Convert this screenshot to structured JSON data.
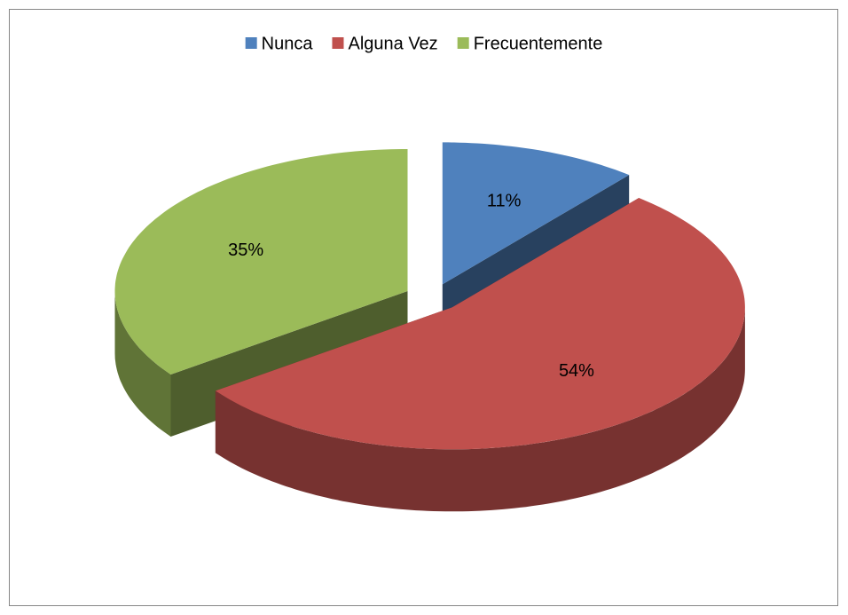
{
  "chart_data": {
    "type": "pie",
    "categories": [
      "Nunca",
      "Alguna Vez",
      "Frecuentemente"
    ],
    "values": [
      11,
      54,
      35
    ],
    "value_labels": [
      "11%",
      "54%",
      "35%"
    ],
    "colors": [
      "#4f81bd",
      "#c0504d",
      "#9bbb59"
    ],
    "legend": "top"
  }
}
